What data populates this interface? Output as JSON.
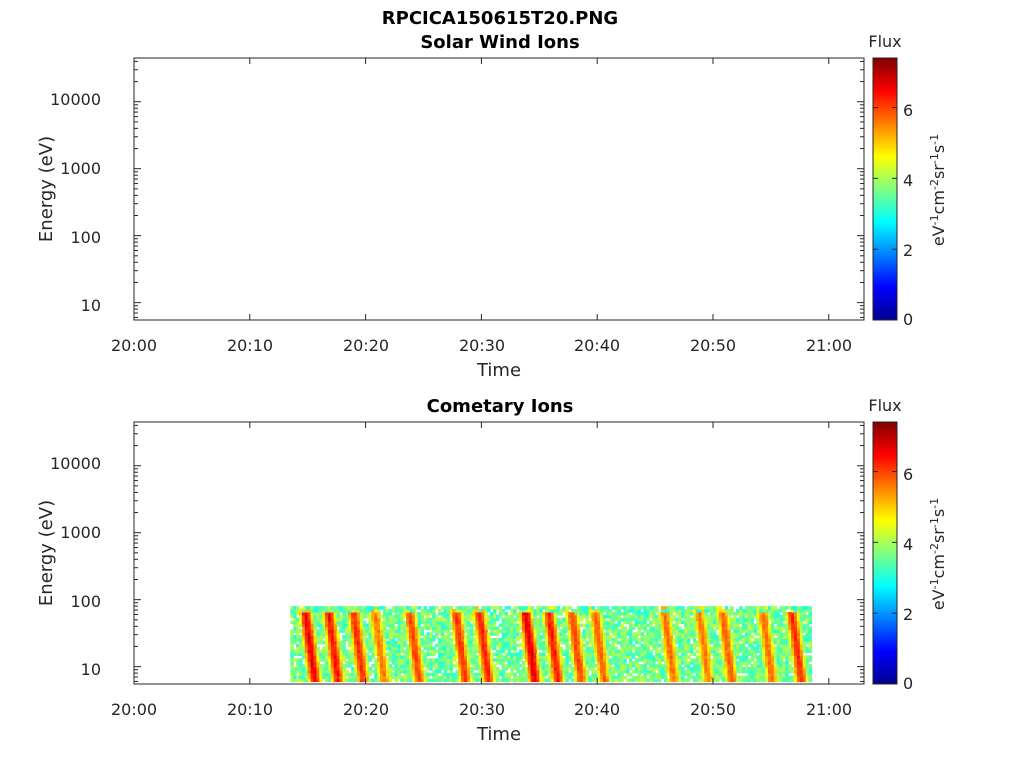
{
  "figure": {
    "title": "RPCICA150615T20.PNG"
  },
  "chart_data": [
    {
      "type": "heatmap",
      "title": "Solar Wind Ions",
      "xlabel": "Time",
      "ylabel": "Energy (eV)",
      "x_ticks": [
        "20:00",
        "20:10",
        "20:20",
        "20:30",
        "20:40",
        "20:50",
        "21:00"
      ],
      "y_ticks": [
        "10",
        "100",
        "1000",
        "10000"
      ],
      "y_scale": "log",
      "colorbar": {
        "title": "Flux",
        "label": "eV-1cm-2sr-1s-1",
        "ticks": [
          "0",
          "2",
          "4",
          "6"
        ],
        "range": [
          0,
          7.4
        ]
      },
      "data": []
    },
    {
      "type": "heatmap",
      "title": "Cometary Ions",
      "xlabel": "Time",
      "ylabel": "Energy (eV)",
      "x_ticks": [
        "20:00",
        "20:10",
        "20:20",
        "20:30",
        "20:40",
        "20:50",
        "21:00"
      ],
      "y_ticks": [
        "10",
        "100",
        "1000",
        "10000"
      ],
      "y_scale": "log",
      "colorbar": {
        "title": "Flux",
        "label": "eV-1cm-2sr-1s-1",
        "ticks": [
          "0",
          "2",
          "4",
          "6"
        ],
        "range": [
          0,
          7.4
        ]
      },
      "data_time_range": [
        "20:13:30",
        "20:58:30"
      ],
      "data_energy_range_eV": [
        6,
        80
      ],
      "flux_bursts": [
        {
          "time": "20:15:30",
          "peak": 6.8
        },
        {
          "time": "20:17:30",
          "peak": 6.6
        },
        {
          "time": "20:19:40",
          "peak": 6.4
        },
        {
          "time": "20:21:30",
          "peak": 5.8
        },
        {
          "time": "20:24:30",
          "peak": 6.2
        },
        {
          "time": "20:28:30",
          "peak": 6.3
        },
        {
          "time": "20:30:30",
          "peak": 6.5
        },
        {
          "time": "20:34:30",
          "peak": 6.9
        },
        {
          "time": "20:36:30",
          "peak": 6.5
        },
        {
          "time": "20:38:30",
          "peak": 6.2
        },
        {
          "time": "20:40:30",
          "peak": 6.0
        },
        {
          "time": "20:46:30",
          "peak": 5.9
        },
        {
          "time": "20:49:30",
          "peak": 5.8
        },
        {
          "time": "20:51:30",
          "peak": 6.0
        },
        {
          "time": "20:55:00",
          "peak": 5.9
        },
        {
          "time": "20:57:30",
          "peak": 6.4
        }
      ]
    }
  ]
}
